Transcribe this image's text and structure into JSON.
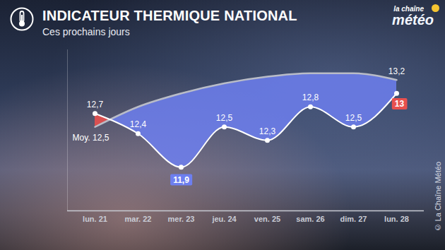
{
  "chart_data": {
    "type": "line",
    "title": "INDICATEUR THERMIQUE NATIONAL",
    "subtitle": "Ces prochains jours",
    "logo": [
      "la chaîne",
      "météo"
    ],
    "source": "© La Chaîne Météo",
    "categories": [
      "lun. 21",
      "mar. 22",
      "mer. 23",
      "jeu. 24",
      "ven. 25",
      "sam. 26",
      "dim. 27",
      "lun. 28"
    ],
    "series": [
      {
        "color": "#ffffff",
        "marker": "circle",
        "values": [
          12.7,
          12.4,
          11.9,
          12.5,
          12.3,
          12.8,
          12.5,
          13
        ],
        "value_labels": [
          "12,7",
          "12,4",
          "11,9",
          "12,5",
          "12,3",
          "12,8",
          "12,5",
          "13"
        ]
      },
      {
        "color": "#b9bcc7",
        "values": [
          12.5,
          12.8,
          13.0,
          13.15,
          13.25,
          13.3,
          13.3,
          13.2
        ],
        "value_labels": [
          "Moy. 12,5",
          null,
          null,
          null,
          null,
          null,
          null,
          "13,2"
        ]
      }
    ],
    "ylim": [
      11.25,
      13.65
    ],
    "yticks": [],
    "grid": false,
    "data_labels": true,
    "tick_labels": "x"
  }
}
